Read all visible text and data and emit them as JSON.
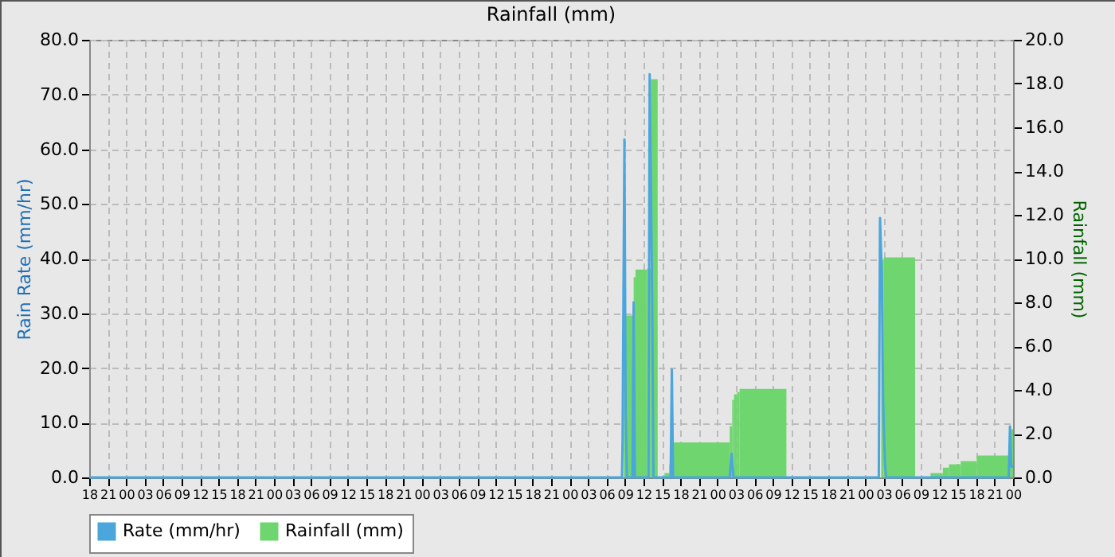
{
  "chart_data": {
    "type": "area",
    "title": "Rainfall (mm)",
    "ylabel": "Rain Rate (mm/hr)",
    "y2label": "Rainfall (mm)",
    "xlim": [
      18,
      168
    ],
    "xticks": [
      {
        "value": 18,
        "label": "18"
      },
      {
        "value": 21,
        "label": "21"
      },
      {
        "value": 24,
        "label": "00"
      },
      {
        "value": 27,
        "label": "03"
      },
      {
        "value": 30,
        "label": "06"
      },
      {
        "value": 33,
        "label": "09"
      },
      {
        "value": 36,
        "label": "12"
      },
      {
        "value": 39,
        "label": "15"
      },
      {
        "value": 42,
        "label": "18"
      },
      {
        "value": 45,
        "label": "21"
      },
      {
        "value": 48,
        "label": "00"
      },
      {
        "value": 51,
        "label": "03"
      },
      {
        "value": 54,
        "label": "06"
      },
      {
        "value": 57,
        "label": "09"
      },
      {
        "value": 60,
        "label": "12"
      },
      {
        "value": 63,
        "label": "15"
      },
      {
        "value": 66,
        "label": "18"
      },
      {
        "value": 69,
        "label": "21"
      },
      {
        "value": 72,
        "label": "00"
      },
      {
        "value": 75,
        "label": "03"
      },
      {
        "value": 78,
        "label": "06"
      },
      {
        "value": 81,
        "label": "09"
      },
      {
        "value": 84,
        "label": "12"
      },
      {
        "value": 87,
        "label": "15"
      },
      {
        "value": 90,
        "label": "18"
      },
      {
        "value": 93,
        "label": "21"
      },
      {
        "value": 96,
        "label": "00"
      },
      {
        "value": 99,
        "label": "03"
      },
      {
        "value": 102,
        "label": "06"
      },
      {
        "value": 105,
        "label": "09"
      },
      {
        "value": 108,
        "label": "12"
      },
      {
        "value": 111,
        "label": "15"
      },
      {
        "value": 114,
        "label": "18"
      },
      {
        "value": 117,
        "label": "21"
      },
      {
        "value": 120,
        "label": "00"
      },
      {
        "value": 123,
        "label": "03"
      },
      {
        "value": 126,
        "label": "06"
      },
      {
        "value": 129,
        "label": "09"
      },
      {
        "value": 132,
        "label": "12"
      },
      {
        "value": 135,
        "label": "15"
      },
      {
        "value": 138,
        "label": "18"
      },
      {
        "value": 141,
        "label": "21"
      },
      {
        "value": 144,
        "label": "00"
      },
      {
        "value": 147,
        "label": "03"
      },
      {
        "value": 150,
        "label": "06"
      },
      {
        "value": 153,
        "label": "09"
      },
      {
        "value": 156,
        "label": "12"
      },
      {
        "value": 159,
        "label": "15"
      },
      {
        "value": 162,
        "label": "18"
      },
      {
        "value": 165,
        "label": "21"
      },
      {
        "value": 168,
        "label": "00"
      }
    ],
    "ylim": [
      0,
      80
    ],
    "yticks": [
      {
        "value": 0,
        "label": "0.0"
      },
      {
        "value": 10,
        "label": "10.0"
      },
      {
        "value": 20,
        "label": "20.0"
      },
      {
        "value": 30,
        "label": "30.0"
      },
      {
        "value": 40,
        "label": "40.0"
      },
      {
        "value": 50,
        "label": "50.0"
      },
      {
        "value": 60,
        "label": "60.0"
      },
      {
        "value": 70,
        "label": "70.0"
      },
      {
        "value": 80,
        "label": "80.0"
      }
    ],
    "y2lim": [
      0,
      20
    ],
    "y2ticks": [
      {
        "value": 0,
        "label": "0.0"
      },
      {
        "value": 2,
        "label": "2.0"
      },
      {
        "value": 4,
        "label": "4.0"
      },
      {
        "value": 6,
        "label": "6.0"
      },
      {
        "value": 8,
        "label": "8.0"
      },
      {
        "value": 10,
        "label": "10.0"
      },
      {
        "value": 12,
        "label": "12.0"
      },
      {
        "value": 14,
        "label": "14.0"
      },
      {
        "value": 16,
        "label": "16.0"
      },
      {
        "value": 18,
        "label": "18.0"
      },
      {
        "value": 20,
        "label": "20.0"
      }
    ],
    "grid": true,
    "legend": "bottom",
    "series": [
      {
        "name": "Rate (mm/hr)",
        "type": "line",
        "color": "#4ba6dc",
        "x": [
          18,
          104.5,
          104.6,
          104.9,
          105.1,
          105.3,
          106.2,
          106.4,
          106.6,
          108.8,
          109.0,
          109.4,
          109.6,
          112.4,
          112.6,
          112.8,
          122.0,
          122.3,
          122.6,
          146.2,
          146.4,
          146.7,
          146.9,
          147.2,
          147.4,
          167.3,
          167.5,
          167.7,
          168
        ],
        "values": [
          0,
          0,
          6.6,
          61.8,
          12.2,
          0,
          0,
          32,
          0,
          0,
          73.7,
          32.7,
          0,
          0,
          19.7,
          0,
          0,
          4.3,
          0,
          0,
          47.4,
          36.8,
          14,
          2.4,
          0,
          0,
          9.3,
          2,
          2
        ]
      },
      {
        "name": "Rainfall (mm)",
        "axis": "y2",
        "color": "#6fd66f",
        "x": [
          18,
          104.8,
          106.4,
          106.7,
          108.6,
          109.2,
          110.3,
          111.4,
          112.2,
          112.8,
          122.0,
          122.4,
          122.7,
          123.2,
          123.6,
          131.2,
          146.6,
          147.0,
          152.1,
          154.6,
          156.6,
          157.6,
          159.5,
          162.1,
          167.3,
          167.6,
          168
        ],
        "values": [
          0,
          7.4,
          9.15,
          9.5,
          9.55,
          18.2,
          0,
          0.2,
          0.6,
          1.6,
          2.35,
          3.55,
          3.8,
          3.9,
          4.05,
          0,
          9.9,
          10.05,
          0,
          0.2,
          0.45,
          0.6,
          0.75,
          1.0,
          1.3,
          2.2,
          2.2
        ]
      }
    ]
  }
}
